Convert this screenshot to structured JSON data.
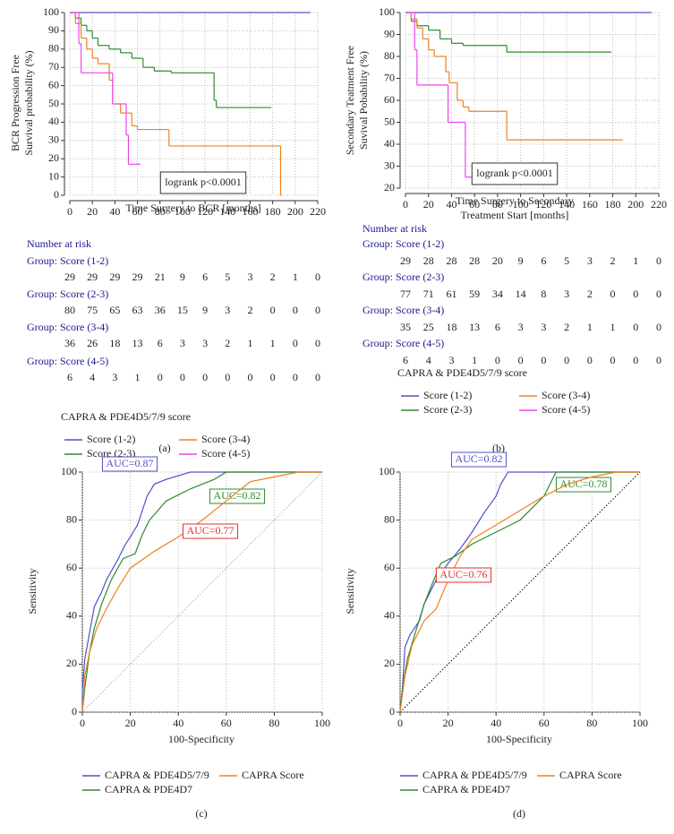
{
  "chart_data": [
    {
      "type": "step",
      "panel": "(a)",
      "ylabel": [
        "BCR Progression Free",
        "Survival probability (%)"
      ],
      "xlabel": [
        "Time Surgery to BCR [months]"
      ],
      "xlim": [
        0,
        220
      ],
      "xticks": [
        0,
        20,
        40,
        60,
        80,
        100,
        120,
        140,
        160,
        180,
        200,
        220
      ],
      "ylim": [
        0,
        100
      ],
      "yticks": [
        0,
        10,
        20,
        30,
        40,
        50,
        60,
        70,
        80,
        90,
        100
      ],
      "grid": true,
      "annotation": "logrank p<0.0001",
      "risk_table": {
        "title": "Number at risk",
        "groups": [
          {
            "name": "Group: Score (1-2)",
            "values": [
              29,
              29,
              29,
              29,
              21,
              9,
              6,
              5,
              3,
              2,
              1,
              0
            ]
          },
          {
            "name": "Group: Score (2-3)",
            "values": [
              80,
              75,
              65,
              63,
              36,
              15,
              9,
              3,
              2,
              0,
              0,
              0
            ]
          },
          {
            "name": "Group: Score (3-4)",
            "values": [
              36,
              26,
              18,
              13,
              6,
              3,
              3,
              2,
              1,
              1,
              0,
              0
            ]
          },
          {
            "name": "Group: Score (4-5)",
            "values": [
              6,
              4,
              3,
              1,
              0,
              0,
              0,
              0,
              0,
              0,
              0,
              0
            ]
          }
        ]
      },
      "legend_title": "CAPRA & PDE4D5/7/9 score",
      "series": [
        {
          "name": "Score (1-2)",
          "color": "#5050c8",
          "x": [
            0,
            213
          ],
          "values": [
            100,
            100
          ]
        },
        {
          "name": "Score (2-3)",
          "color": "#2e8b2e",
          "x": [
            0,
            5,
            10,
            15,
            20,
            25,
            35,
            45,
            55,
            65,
            75,
            90,
            128,
            130,
            178
          ],
          "values": [
            100,
            97,
            93,
            90,
            86,
            82,
            80,
            78,
            75,
            70,
            68,
            67,
            52,
            48,
            48
          ]
        },
        {
          "name": "Score (3-4)",
          "color": "#f08020",
          "x": [
            0,
            5,
            10,
            15,
            20,
            25,
            35,
            38,
            45,
            55,
            60,
            88,
            187
          ],
          "values": [
            100,
            94,
            86,
            80,
            75,
            72,
            63,
            50,
            45,
            38,
            36,
            27,
            0
          ]
        },
        {
          "name": "Score (4-5)",
          "color": "#ee44ee",
          "x": [
            0,
            8,
            10,
            38,
            50,
            52,
            62
          ],
          "values": [
            100,
            83,
            67,
            50,
            33,
            17,
            17
          ]
        }
      ]
    },
    {
      "type": "step",
      "panel": "(b)",
      "ylabel": [
        "Secondary Teatment Free",
        "Suvival Pobability (%)"
      ],
      "xlabel": [
        "Time Surgery to Secondary",
        "Treatment Start [months]"
      ],
      "xlim": [
        0,
        220
      ],
      "xticks": [
        0,
        20,
        40,
        60,
        80,
        100,
        120,
        140,
        160,
        180,
        200,
        220
      ],
      "ylim": [
        20,
        100
      ],
      "yticks": [
        20,
        30,
        40,
        50,
        60,
        70,
        80,
        90,
        100
      ],
      "grid": true,
      "annotation": "logrank p<0.0001",
      "risk_table": {
        "title": "Number at risk",
        "groups": [
          {
            "name": "Group: Score (1-2)",
            "values": [
              29,
              28,
              28,
              28,
              20,
              9,
              6,
              5,
              3,
              2,
              1,
              0
            ]
          },
          {
            "name": "Group: Score (2-3)",
            "values": [
              77,
              71,
              61,
              59,
              34,
              14,
              8,
              3,
              2,
              0,
              0,
              0
            ]
          },
          {
            "name": "Group: Score (3-4)",
            "values": [
              35,
              25,
              18,
              13,
              6,
              3,
              3,
              2,
              1,
              1,
              0,
              0
            ]
          },
          {
            "name": "Group: Score (4-5)",
            "values": [
              6,
              4,
              3,
              1,
              0,
              0,
              0,
              0,
              0,
              0,
              0,
              0
            ]
          }
        ]
      },
      "legend_title": "CAPRA & PDE4D5/7/9 score",
      "series": [
        {
          "name": "Score (1-2)",
          "color": "#5050c8",
          "x": [
            0,
            213
          ],
          "values": [
            100,
            100
          ]
        },
        {
          "name": "Score (2-3)",
          "color": "#2e8b2e",
          "x": [
            0,
            5,
            10,
            20,
            30,
            40,
            50,
            88,
            178
          ],
          "values": [
            100,
            96,
            94,
            92,
            88,
            86,
            85,
            82,
            82
          ]
        },
        {
          "name": "Score (3-4)",
          "color": "#f08020",
          "x": [
            0,
            5,
            10,
            15,
            20,
            25,
            35,
            38,
            45,
            50,
            55,
            88,
            188
          ],
          "values": [
            100,
            97,
            93,
            88,
            83,
            80,
            73,
            68,
            60,
            57,
            55,
            42,
            42
          ]
        },
        {
          "name": "Score (4-5)",
          "color": "#ee44ee",
          "x": [
            0,
            8,
            10,
            37,
            52,
            58
          ],
          "values": [
            100,
            83,
            67,
            50,
            25,
            22
          ]
        }
      ]
    },
    {
      "type": "line",
      "panel": "(c)",
      "ylabel": [
        "Sensitivity"
      ],
      "xlabel": [
        "100-Specificity"
      ],
      "xlim": [
        0,
        100
      ],
      "xticks": [
        0,
        20,
        40,
        60,
        80,
        100
      ],
      "ylim": [
        0,
        100
      ],
      "yticks": [
        0,
        20,
        40,
        60,
        80,
        100
      ],
      "grid": true,
      "reference_line_color": "#aaaaaa",
      "series": [
        {
          "name": "CAPRA & PDE4D5/7/9",
          "color": "#5050c8",
          "annotation": "AUC=0.87",
          "annotation_color": "#5050c8",
          "x": [
            0,
            0,
            1,
            3,
            5,
            8,
            10,
            15,
            18,
            20,
            23,
            25,
            27,
            30,
            35,
            45,
            65,
            100
          ],
          "values": [
            0,
            9,
            22,
            33,
            44,
            50,
            55,
            64,
            70,
            73,
            78,
            84,
            90,
            95,
            97,
            100,
            100,
            100
          ]
        },
        {
          "name": "CAPRA & PDE4D7",
          "color": "#2e8b2e",
          "annotation": "AUC=0.82",
          "annotation_color": "#2e8b2e",
          "x": [
            0,
            1,
            3,
            5,
            8,
            12,
            17,
            22,
            25,
            28,
            35,
            45,
            55,
            60,
            100
          ],
          "values": [
            0,
            10,
            25,
            35,
            45,
            55,
            64,
            66,
            74,
            80,
            88,
            93,
            97,
            100,
            100
          ]
        },
        {
          "name": "CAPRA Score",
          "color": "#f08020",
          "annotation": "AUC=0.77",
          "annotation_color": "#e03030",
          "x": [
            0,
            1,
            3,
            6,
            10,
            15,
            20,
            30,
            40,
            50,
            60,
            70,
            80,
            90,
            100
          ],
          "values": [
            0,
            15,
            25,
            35,
            43,
            52,
            60,
            67,
            73,
            80,
            88,
            96,
            98,
            100,
            100
          ]
        }
      ]
    },
    {
      "type": "line",
      "panel": "(d)",
      "ylabel": [
        "Sensitivity"
      ],
      "xlabel": [
        "100-Specificity"
      ],
      "xlim": [
        0,
        100
      ],
      "xticks": [
        0,
        20,
        40,
        60,
        80,
        100
      ],
      "ylim": [
        0,
        100
      ],
      "yticks": [
        0,
        20,
        40,
        60,
        80,
        100
      ],
      "grid": true,
      "reference_line_color": "#000000",
      "series": [
        {
          "name": "CAPRA & PDE4D5/7/9",
          "color": "#5050c8",
          "annotation": "AUC=0.82",
          "annotation_color": "#5050c8",
          "x": [
            0,
            1,
            2,
            4,
            8,
            10,
            15,
            20,
            25,
            30,
            35,
            40,
            42,
            45,
            100
          ],
          "values": [
            0,
            10,
            27,
            32,
            38,
            45,
            55,
            62,
            68,
            75,
            83,
            90,
            95,
            100,
            100
          ]
        },
        {
          "name": "CAPRA & PDE4D7",
          "color": "#2e8b2e",
          "annotation": "AUC=0.78",
          "annotation_color": "#2e8b2e",
          "x": [
            0,
            1,
            3,
            6,
            10,
            14,
            17,
            23,
            30,
            40,
            50,
            60,
            65,
            100
          ],
          "values": [
            0,
            10,
            22,
            32,
            45,
            55,
            62,
            65,
            70,
            75,
            80,
            90,
            100,
            100
          ]
        },
        {
          "name": "CAPRA Score",
          "color": "#f08020",
          "annotation": "AUC=0.76",
          "annotation_color": "#e03030",
          "x": [
            0,
            2,
            5,
            10,
            15,
            20,
            25,
            30,
            40,
            50,
            60,
            70,
            80,
            90,
            100
          ],
          "values": [
            0,
            15,
            28,
            38,
            43,
            55,
            65,
            72,
            78,
            84,
            90,
            95,
            98,
            100,
            100
          ]
        }
      ]
    }
  ]
}
